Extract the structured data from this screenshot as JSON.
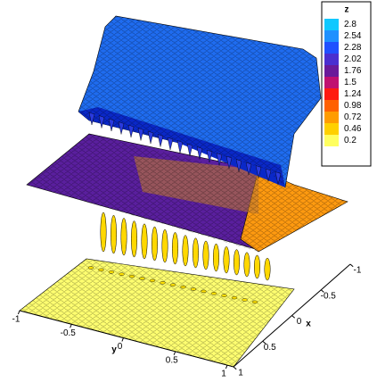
{
  "chart_data": {
    "type": "surface3d",
    "colorbar": {
      "title": "z",
      "levels": [
        2.8,
        2.54,
        2.28,
        2.02,
        1.76,
        1.5,
        1.24,
        0.98,
        0.72,
        0.46,
        0.2
      ],
      "colors": [
        "#10c8ff",
        "#1e90ff",
        "#2050ff",
        "#4a2fd0",
        "#6a1a9a",
        "#c01070",
        "#ff1a10",
        "#ff6000",
        "#ff9c00",
        "#ffd000",
        "#ffff60"
      ]
    },
    "xlabel": "x",
    "xlim": [
      -1,
      1
    ],
    "xticks": [
      -1,
      -0.5,
      0,
      0.5,
      1
    ],
    "ylabel": "y",
    "ylim": [
      -1,
      1
    ],
    "yticks": [
      -1,
      -0.5,
      0,
      0.5,
      1
    ]
  }
}
